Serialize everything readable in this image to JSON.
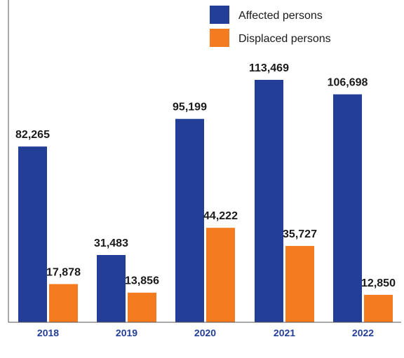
{
  "chart_data": {
    "type": "bar",
    "categories": [
      "2018",
      "2019",
      "2020",
      "2021",
      "2022"
    ],
    "series": [
      {
        "name": "Affected persons",
        "values": [
          82265,
          31483,
          95199,
          113469,
          106698
        ],
        "color": "#233e96"
      },
      {
        "name": "Displaced persons",
        "values": [
          17878,
          13856,
          44222,
          35727,
          12850
        ],
        "color": "#f47b20"
      }
    ],
    "value_labels": [
      [
        "82,265",
        "31,483",
        "95,199",
        "113,469",
        "106,698"
      ],
      [
        "17,878",
        "13,856",
        "44,222",
        "35,727",
        "12,850"
      ]
    ],
    "title": "",
    "xlabel": "",
    "ylabel": "",
    "ylim": [
      0,
      120000
    ],
    "grid": false,
    "legend_position": "top-right",
    "tick_label_color": "#233e96",
    "axis_color": "#555555"
  }
}
